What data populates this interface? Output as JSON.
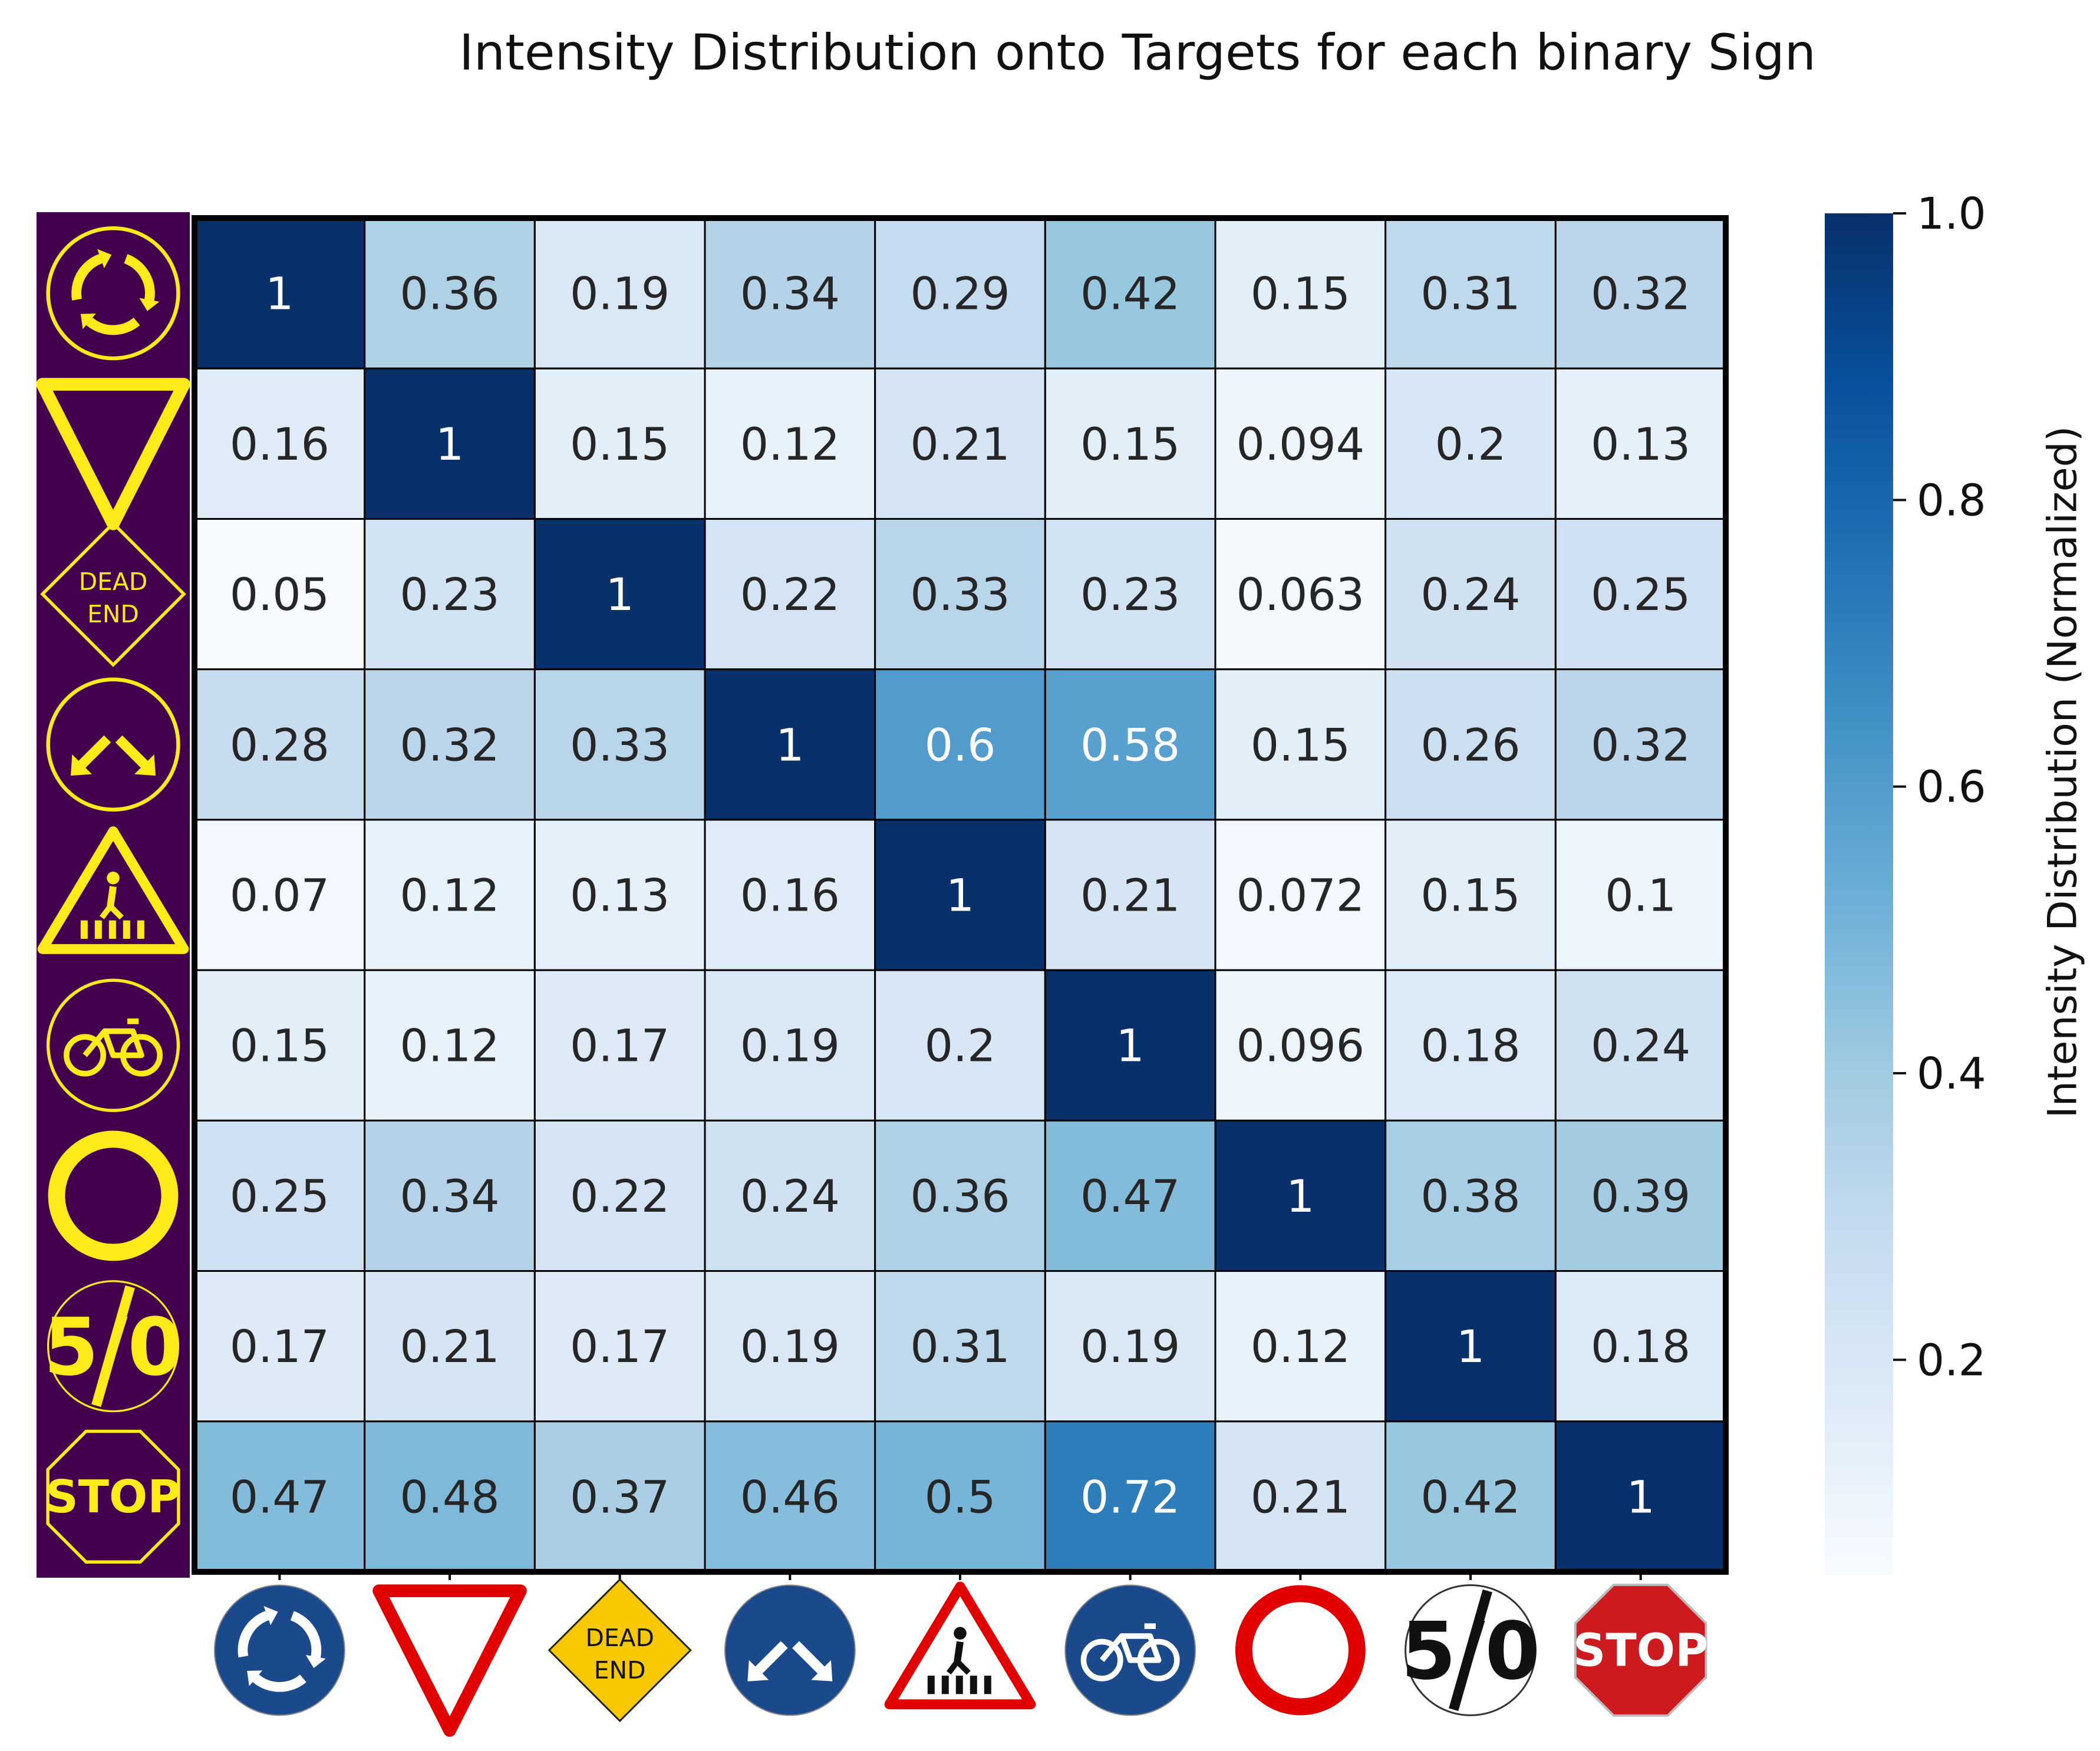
{
  "chart_data": {
    "type": "heatmap",
    "title": "Intensity Distribution onto Targets for each binary Sign",
    "colorbar_label": "Intensity Distribution (Normalized)",
    "colorbar_ticks": [
      "0.2",
      "0.4",
      "0.6",
      "0.8",
      "1.0"
    ],
    "colorbar_range": [
      0.05,
      1.0
    ],
    "colormap": [
      "#f7fbff",
      "#deebf7",
      "#c6dbef",
      "#9ecae1",
      "#6baed6",
      "#4292c6",
      "#2171b5",
      "#08519c",
      "#08306b"
    ],
    "row_labels": [
      "roundabout",
      "yield",
      "dead end",
      "pass either side",
      "pedestrian crossing",
      "bicycle path",
      "no vehicles",
      "end of speed limit 50",
      "stop"
    ],
    "col_labels": [
      "roundabout",
      "yield",
      "dead end",
      "pass either side",
      "pedestrian crossing",
      "bicycle path",
      "no vehicles",
      "end of speed limit 50",
      "stop"
    ],
    "values": [
      [
        1,
        0.36,
        0.19,
        0.34,
        0.29,
        0.42,
        0.15,
        0.31,
        0.32
      ],
      [
        0.16,
        1,
        0.15,
        0.12,
        0.21,
        0.15,
        0.094,
        0.2,
        0.13
      ],
      [
        0.05,
        0.23,
        1,
        0.22,
        0.33,
        0.23,
        0.063,
        0.24,
        0.25
      ],
      [
        0.28,
        0.32,
        0.33,
        1,
        0.6,
        0.58,
        0.15,
        0.26,
        0.32
      ],
      [
        0.07,
        0.12,
        0.13,
        0.16,
        1,
        0.21,
        0.072,
        0.15,
        0.1
      ],
      [
        0.15,
        0.12,
        0.17,
        0.19,
        0.2,
        1,
        0.096,
        0.18,
        0.24
      ],
      [
        0.25,
        0.34,
        0.22,
        0.24,
        0.36,
        0.47,
        1,
        0.38,
        0.39
      ],
      [
        0.17,
        0.21,
        0.17,
        0.19,
        0.31,
        0.19,
        0.12,
        1,
        0.18
      ],
      [
        0.47,
        0.48,
        0.37,
        0.46,
        0.5,
        0.72,
        0.21,
        0.42,
        1
      ]
    ],
    "icon_text": {
      "dead_end": [
        "DEAD",
        "END"
      ],
      "speed": "5/0",
      "stop": "STOP"
    },
    "colors": {
      "sign_yellow": "#ffeb1a",
      "binary_bg": "#42004d",
      "sign_blue": "#1a4a8c",
      "sign_red": "#e00000",
      "stop_red": "#cc1a1f"
    }
  }
}
